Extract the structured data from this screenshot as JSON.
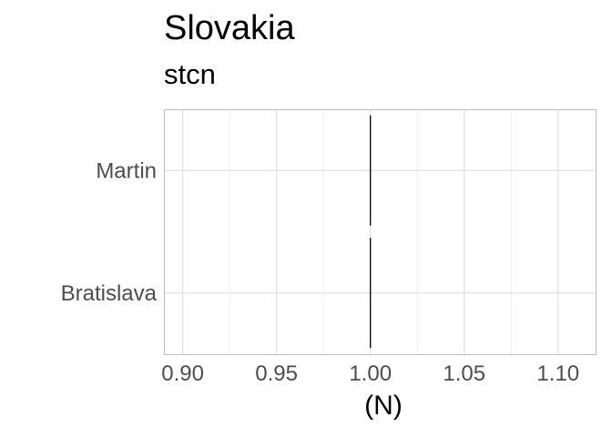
{
  "chart_data": {
    "type": "bar",
    "title": "Slovakia",
    "subtitle": "stcn",
    "xlabel": "(N)",
    "ylabel": "",
    "categories": [
      "Martin",
      "Bratislava"
    ],
    "values": [
      1,
      1
    ],
    "xlim": [
      0.89,
      1.12
    ],
    "xticks": [
      0.9,
      0.95,
      1.0,
      1.05,
      1.1
    ],
    "xtick_labels": [
      "0.90",
      "0.95",
      "1.00",
      "1.05",
      "1.10"
    ],
    "grid": true,
    "legend": "none",
    "colors": {
      "bar": "#000000",
      "grid": "#e0e0e0",
      "panel_border": "#bdbdbd",
      "axis_text": "#4d4d4d"
    }
  }
}
